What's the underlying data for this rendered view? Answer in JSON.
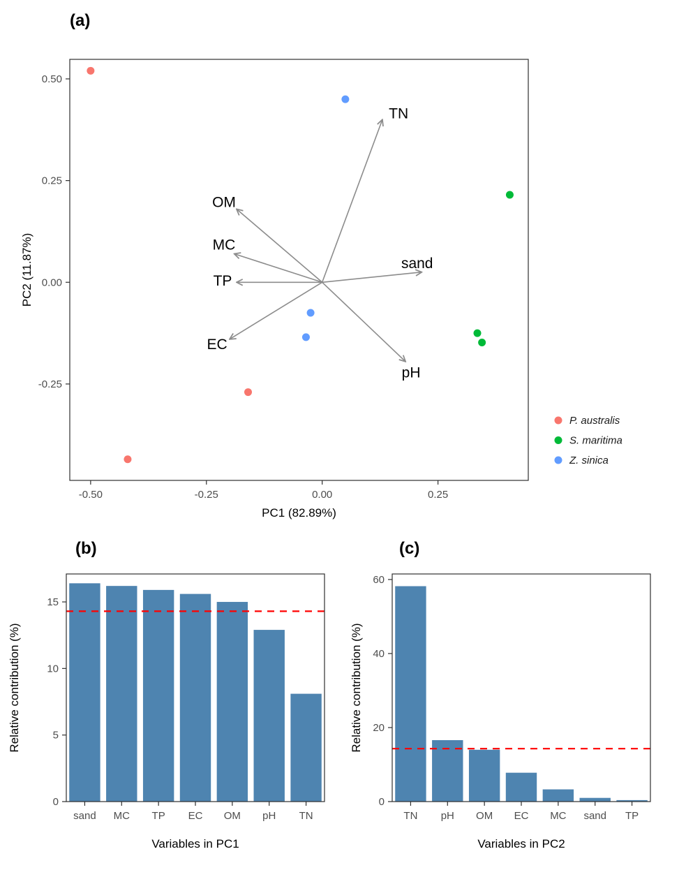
{
  "panels": {
    "a": {
      "label": "(a)"
    },
    "b": {
      "label": "(b)"
    },
    "c": {
      "label": "(c)"
    }
  },
  "chart_data": [
    {
      "id": "pca-biplot",
      "type": "scatter",
      "title": "",
      "xlabel": "PC1 (82.89%)",
      "ylabel": "PC2 (11.87%)",
      "xlim": [
        -0.545,
        0.445
      ],
      "ylim": [
        -0.487,
        0.548
      ],
      "grid": false,
      "x_ticks": [
        {
          "v": -0.5,
          "label": "-0.50"
        },
        {
          "v": -0.25,
          "label": "-0.25"
        },
        {
          "v": 0.0,
          "label": "0.00"
        },
        {
          "v": 0.25,
          "label": "0.25"
        }
      ],
      "y_ticks": [
        {
          "v": -0.25,
          "label": "-0.25"
        },
        {
          "v": 0.0,
          "label": "0.00"
        },
        {
          "v": 0.25,
          "label": "0.25"
        },
        {
          "v": 0.5,
          "label": "0.50"
        }
      ],
      "arrow_color": "#8c8c8c",
      "legend_position": "right-bottom",
      "series": [
        {
          "name": "P. australis",
          "color": "#F8766D",
          "points": [
            [
              -0.5,
              0.52
            ],
            [
              -0.16,
              -0.27
            ],
            [
              -0.42,
              -0.435
            ]
          ]
        },
        {
          "name": "S. maritima",
          "color": "#00BA38",
          "points": [
            [
              0.405,
              0.215
            ],
            [
              0.335,
              -0.125
            ],
            [
              0.345,
              -0.148
            ]
          ]
        },
        {
          "name": "Z. sinica",
          "color": "#619CFF",
          "points": [
            [
              0.05,
              0.45
            ],
            [
              -0.025,
              -0.075
            ],
            [
              -0.035,
              -0.135
            ]
          ]
        }
      ],
      "loadings": [
        {
          "label": "TN",
          "x": 0.13,
          "y": 0.4,
          "lx": 0.165,
          "ly": 0.415
        },
        {
          "label": "OM",
          "x": -0.185,
          "y": 0.18,
          "lx": -0.212,
          "ly": 0.197
        },
        {
          "label": "MC",
          "x": -0.19,
          "y": 0.07,
          "lx": -0.212,
          "ly": 0.092
        },
        {
          "label": "TP",
          "x": -0.185,
          "y": 0.0,
          "lx": -0.215,
          "ly": 0.004
        },
        {
          "label": "EC",
          "x": -0.2,
          "y": -0.14,
          "lx": -0.227,
          "ly": -0.152
        },
        {
          "label": "sand",
          "x": 0.215,
          "y": 0.025,
          "lx": 0.205,
          "ly": 0.047
        },
        {
          "label": "pH",
          "x": 0.18,
          "y": -0.195,
          "lx": 0.192,
          "ly": -0.222
        }
      ]
    },
    {
      "id": "pc1-contributions",
      "type": "bar",
      "categories": [
        "sand",
        "MC",
        "TP",
        "EC",
        "OM",
        "pH",
        "TN"
      ],
      "values": [
        16.4,
        16.2,
        15.9,
        15.6,
        15.0,
        12.9,
        8.1
      ],
      "xlabel": "Variables in PC1",
      "ylabel": "Relative contribution (%)",
      "ylim": [
        0,
        17.1
      ],
      "y_ticks": [
        {
          "v": 0,
          "label": "0"
        },
        {
          "v": 5,
          "label": "5"
        },
        {
          "v": 10,
          "label": "10"
        },
        {
          "v": 15,
          "label": "15"
        }
      ],
      "ref_line": 14.3,
      "bar_color": "#4e84b0",
      "ref_color": "#ff0000"
    },
    {
      "id": "pc2-contributions",
      "type": "bar",
      "categories": [
        "TN",
        "pH",
        "OM",
        "EC",
        "MC",
        "sand",
        "TP"
      ],
      "values": [
        58.2,
        16.6,
        14.0,
        7.8,
        3.3,
        1.0,
        0.4
      ],
      "xlabel": "Variables in PC2",
      "ylabel": "Relative contribution (%)",
      "ylim": [
        0,
        61.5
      ],
      "y_ticks": [
        {
          "v": 0,
          "label": "0"
        },
        {
          "v": 20,
          "label": "20"
        },
        {
          "v": 40,
          "label": "40"
        },
        {
          "v": 60,
          "label": "60"
        }
      ],
      "ref_line": 14.3,
      "bar_color": "#4e84b0",
      "ref_color": "#ff0000"
    }
  ]
}
